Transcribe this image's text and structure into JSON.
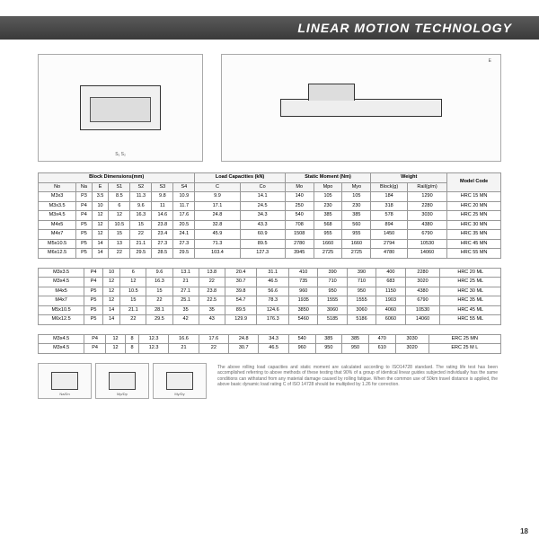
{
  "header": {
    "title": "LINEAR MOTION TECHNOLOGY"
  },
  "page_number": "18",
  "table_headers": {
    "block_dim": "Block Dimensions(mm)",
    "load_cap": "Load Capacities (kN)",
    "static_moment": "Static Moment (Nm)",
    "weight": "Weight",
    "model": "Model Code",
    "block_g": "Block(g)",
    "rail_gm": "Rail(g/m)"
  },
  "cols": [
    "No",
    "Na",
    "E",
    "S1",
    "S2",
    "S3",
    "S4",
    "C",
    "Co",
    "Mo",
    "Mpo",
    "Myo",
    "Block(g)",
    "Rail(g/m)",
    "Model Code"
  ],
  "table1": [
    [
      "M3x3",
      "P3",
      "3.5",
      "8.5",
      "11.3",
      "9.8",
      "10.9",
      "9.9",
      "14.1",
      "140",
      "105",
      "105",
      "184",
      "1290",
      "HRC 15 MN"
    ],
    [
      "M3x3.5",
      "P4",
      "10",
      "6",
      "9.6",
      "11",
      "11.7",
      "17.1",
      "24.5",
      "250",
      "230",
      "230",
      "318",
      "2280",
      "HRC 20 MN"
    ],
    [
      "M3x4.5",
      "P4",
      "12",
      "12",
      "16.3",
      "14.6",
      "17.6",
      "24.8",
      "34.3",
      "540",
      "385",
      "385",
      "578",
      "3030",
      "HRC 25 MN"
    ],
    [
      "M4x5",
      "P5",
      "12",
      "10.5",
      "15",
      "23.8",
      "20.5",
      "32.8",
      "43.3",
      "708",
      "568",
      "560",
      "894",
      "4380",
      "HRC 30 MN"
    ],
    [
      "M4x7",
      "P5",
      "12",
      "15",
      "22",
      "23.4",
      "24.1",
      "45.9",
      "60.9",
      "1508",
      "955",
      "955",
      "1450",
      "6790",
      "HRC 35 MN"
    ],
    [
      "M5x10.5",
      "P5",
      "14",
      "13",
      "21.1",
      "27.3",
      "27.3",
      "71.3",
      "89.5",
      "2780",
      "1660",
      "1660",
      "2794",
      "10530",
      "HRC 45 MN"
    ],
    [
      "M6x12.5",
      "P5",
      "14",
      "22",
      "29.5",
      "28.5",
      "29.5",
      "103.4",
      "127.3",
      "3945",
      "2725",
      "2725",
      "4780",
      "14060",
      "HRC 55 MN"
    ]
  ],
  "table2": [
    [
      "M3x3.5",
      "P4",
      "10",
      "6",
      "9.6",
      "13.1",
      "13.8",
      "20.4",
      "31.1",
      "410",
      "390",
      "390",
      "400",
      "2280",
      "HRC 20 ML"
    ],
    [
      "M3x4.5",
      "P4",
      "12",
      "12",
      "16.3",
      "21",
      "22",
      "30.7",
      "46.5",
      "735",
      "710",
      "710",
      "683",
      "3020",
      "HRC 25 ML"
    ],
    [
      "M4x5",
      "P5",
      "12",
      "10.5",
      "15",
      "27.1",
      "23.8",
      "39.8",
      "56.6",
      "960",
      "950",
      "950",
      "1150",
      "4380",
      "HRC 30 ML"
    ],
    [
      "M4x7",
      "P5",
      "12",
      "15",
      "22",
      "25.1",
      "22.5",
      "54.7",
      "78.3",
      "1935",
      "1555",
      "1555",
      "1903",
      "6790",
      "HRC 35 ML"
    ],
    [
      "M5x10.5",
      "P5",
      "14",
      "21.1",
      "28.1",
      "35",
      "35",
      "89.5",
      "124.6",
      "3850",
      "3060",
      "3060",
      "4060",
      "10530",
      "HRC 45 ML"
    ],
    [
      "M6x12.5",
      "P5",
      "14",
      "22",
      "29.5",
      "42",
      "43",
      "129.9",
      "176.3",
      "5460",
      "5185",
      "5186",
      "6060",
      "14060",
      "HRC 55 ML"
    ]
  ],
  "table3": [
    [
      "M3x4.5",
      "P4",
      "12",
      "8",
      "12.3",
      "16.6",
      "17.6",
      "24.8",
      "34.3",
      "540",
      "385",
      "385",
      "470",
      "3030",
      "ERC 25 MN"
    ],
    [
      "M3x4.5",
      "P4",
      "12",
      "8",
      "12.3",
      "21",
      "22",
      "30.7",
      "46.5",
      "960",
      "950",
      "950",
      "610",
      "3020",
      "ERC 25 M L"
    ]
  ],
  "mini_labels": [
    "Na/Dn",
    "Mp/Dp",
    "My/Dy"
  ],
  "disclaimer": "The above rolling load capacities and static moment are calculated according to ISO14728 standard. The rating life test has been accomplished referring to above methods of these testing that 90% of a group of identical linear guides subjected individually has the same conditions can withstand from any material damage caused by rolling fatigue. When the common use of 50km travel distance is applied, the above basic dynamic load rating C of ISO 14728 should be multiplied by 1.26 for correction."
}
